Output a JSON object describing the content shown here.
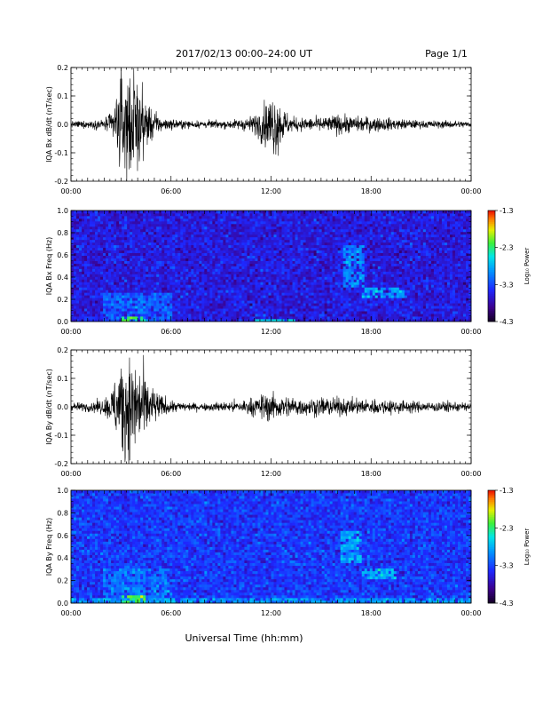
{
  "header": {
    "title": "2017/02/13  00:00–24:00 UT",
    "page": "Page 1/1"
  },
  "footer": {
    "xlabel": "Universal Time (hh:mm)"
  },
  "colorbar": {
    "label": "Log₁₀ Power",
    "ticks": [
      "-1.3",
      "-2.3",
      "-3.3",
      "-4.3"
    ],
    "range": [
      -4.3,
      -1.3
    ]
  },
  "chart_data": [
    {
      "type": "line",
      "title": "",
      "xlabel": "",
      "ylabel": "IQA Bx dB/dt (nT/sec)",
      "xlim": [
        0,
        24
      ],
      "ylim": [
        -0.2,
        0.2
      ],
      "xticks": [
        "00:00",
        "06:00",
        "12:00",
        "18:00",
        "00:00"
      ],
      "yticks": [
        "0.2",
        "0.1",
        "0.0",
        "-0.1",
        "-0.2"
      ],
      "envelope": {
        "x_hours": [
          0,
          1,
          2,
          2.5,
          3,
          3.3,
          3.6,
          3.9,
          4.2,
          4.6,
          5,
          5.5,
          6,
          7,
          8,
          9,
          10,
          11,
          11.3,
          11.7,
          12,
          12.2,
          12.5,
          12.8,
          13.2,
          14,
          15,
          15.5,
          16,
          16.5,
          17,
          18,
          19,
          19.5,
          20,
          21,
          22,
          23,
          24
        ],
        "amplitude": [
          0.012,
          0.015,
          0.02,
          0.06,
          0.2,
          0.2,
          0.2,
          0.2,
          0.14,
          0.09,
          0.05,
          0.025,
          0.02,
          0.015,
          0.015,
          0.015,
          0.02,
          0.035,
          0.06,
          0.09,
          0.11,
          0.13,
          0.1,
          0.06,
          0.03,
          0.025,
          0.03,
          0.03,
          0.04,
          0.035,
          0.03,
          0.03,
          0.025,
          0.02,
          0.02,
          0.015,
          0.015,
          0.015,
          0.012
        ]
      }
    },
    {
      "type": "heatmap",
      "title": "",
      "xlabel": "",
      "ylabel": "IQA Bx Freq (Hz)",
      "xlim": [
        0,
        24
      ],
      "ylim": [
        0,
        1.0
      ],
      "xticks": [
        "00:00",
        "06:00",
        "12:00",
        "18:00",
        "00:00"
      ],
      "yticks": [
        "1.0",
        "0.8",
        "0.6",
        "0.4",
        "0.2",
        "0.0"
      ],
      "zlim": [
        -4.3,
        -1.3
      ],
      "background_log_power": -3.6,
      "features": [
        {
          "x_hours": [
            3.0,
            4.5
          ],
          "freq_hz": [
            0.0,
            0.05
          ],
          "log_power": -2.3
        },
        {
          "x_hours": [
            2.0,
            6.0
          ],
          "freq_hz": [
            0.0,
            0.25
          ],
          "log_power": -3.2
        },
        {
          "x_hours": [
            11.0,
            13.5
          ],
          "freq_hz": [
            0.0,
            0.03
          ],
          "log_power": -2.6
        },
        {
          "x_hours": [
            16.3,
            17.6
          ],
          "freq_hz": [
            0.3,
            0.7
          ],
          "log_power": -3.0
        },
        {
          "x_hours": [
            17.5,
            20.0
          ],
          "freq_hz": [
            0.22,
            0.32
          ],
          "log_power": -2.9
        }
      ]
    },
    {
      "type": "line",
      "title": "",
      "xlabel": "",
      "ylabel": "IQA By dB/dt (nT/sec)",
      "xlim": [
        0,
        24
      ],
      "ylim": [
        -0.2,
        0.2
      ],
      "xticks": [
        "00:00",
        "06:00",
        "12:00",
        "18:00",
        "00:00"
      ],
      "yticks": [
        "0.2",
        "0.1",
        "0.0",
        "-0.1",
        "-0.2"
      ],
      "envelope": {
        "x_hours": [
          0,
          1,
          2,
          2.5,
          3,
          3.3,
          3.6,
          3.9,
          4.2,
          4.6,
          5,
          5.5,
          6,
          7,
          8,
          9,
          10,
          11,
          11.5,
          12,
          12.5,
          13,
          14,
          15,
          15.5,
          16,
          17,
          18,
          19,
          20,
          21,
          22,
          23,
          24
        ],
        "amplitude": [
          0.015,
          0.018,
          0.03,
          0.08,
          0.2,
          0.2,
          0.2,
          0.2,
          0.16,
          0.1,
          0.07,
          0.04,
          0.025,
          0.015,
          0.015,
          0.018,
          0.025,
          0.035,
          0.05,
          0.06,
          0.045,
          0.04,
          0.035,
          0.035,
          0.04,
          0.035,
          0.03,
          0.03,
          0.03,
          0.025,
          0.02,
          0.02,
          0.02,
          0.015
        ]
      }
    },
    {
      "type": "heatmap",
      "title": "",
      "xlabel": "",
      "ylabel": "IQA By Freq (Hz)",
      "xlim": [
        0,
        24
      ],
      "ylim": [
        0,
        1.0
      ],
      "xticks": [
        "00:00",
        "06:00",
        "12:00",
        "18:00",
        "00:00"
      ],
      "yticks": [
        "1.0",
        "0.8",
        "0.6",
        "0.4",
        "0.2",
        "0.0"
      ],
      "zlim": [
        -4.3,
        -1.3
      ],
      "background_log_power": -3.4,
      "features": [
        {
          "x_hours": [
            3.0,
            4.5
          ],
          "freq_hz": [
            0.0,
            0.06
          ],
          "log_power": -2.2
        },
        {
          "x_hours": [
            0.0,
            24.0
          ],
          "freq_hz": [
            0.0,
            0.04
          ],
          "log_power": -2.9
        },
        {
          "x_hours": [
            2.0,
            6.0
          ],
          "freq_hz": [
            0.0,
            0.3
          ],
          "log_power": -3.1
        },
        {
          "x_hours": [
            16.2,
            17.5
          ],
          "freq_hz": [
            0.35,
            0.65
          ],
          "log_power": -2.9
        },
        {
          "x_hours": [
            17.5,
            19.5
          ],
          "freq_hz": [
            0.22,
            0.3
          ],
          "log_power": -2.8
        }
      ]
    }
  ]
}
